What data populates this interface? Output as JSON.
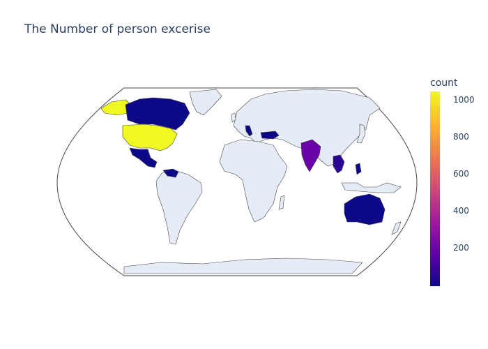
{
  "title": "The Number of person excerise",
  "colorbar": {
    "title": "count",
    "ticks": [
      "1000",
      "800",
      "600",
      "400",
      "200"
    ],
    "colorscale": [
      "#0d0887",
      "#5c01a6",
      "#9c179e",
      "#cc4778",
      "#ed7953",
      "#fdb42f",
      "#f0f921"
    ],
    "range": [
      0,
      1050
    ]
  },
  "map": {
    "projection": "natural-earth",
    "land_color": "#e5ecf6",
    "border_color": "#444444"
  },
  "countries": [
    {
      "name": "United States",
      "count": 1050,
      "color": "#f0f921"
    },
    {
      "name": "Canada",
      "count": 5,
      "color": "#0d0887"
    },
    {
      "name": "Mexico",
      "count": 10,
      "color": "#0d0887"
    },
    {
      "name": "Venezuela",
      "count": 5,
      "color": "#0d0887"
    },
    {
      "name": "India",
      "count": 250,
      "color": "#6a00a8"
    },
    {
      "name": "Australia",
      "count": 10,
      "color": "#0d0887"
    },
    {
      "name": "Italy",
      "count": 5,
      "color": "#0d0887"
    },
    {
      "name": "Turkey",
      "count": 10,
      "color": "#0d0887"
    },
    {
      "name": "Thailand",
      "count": 40,
      "color": "#2a0593"
    },
    {
      "name": "Philippines",
      "count": 10,
      "color": "#0d0887"
    }
  ]
}
